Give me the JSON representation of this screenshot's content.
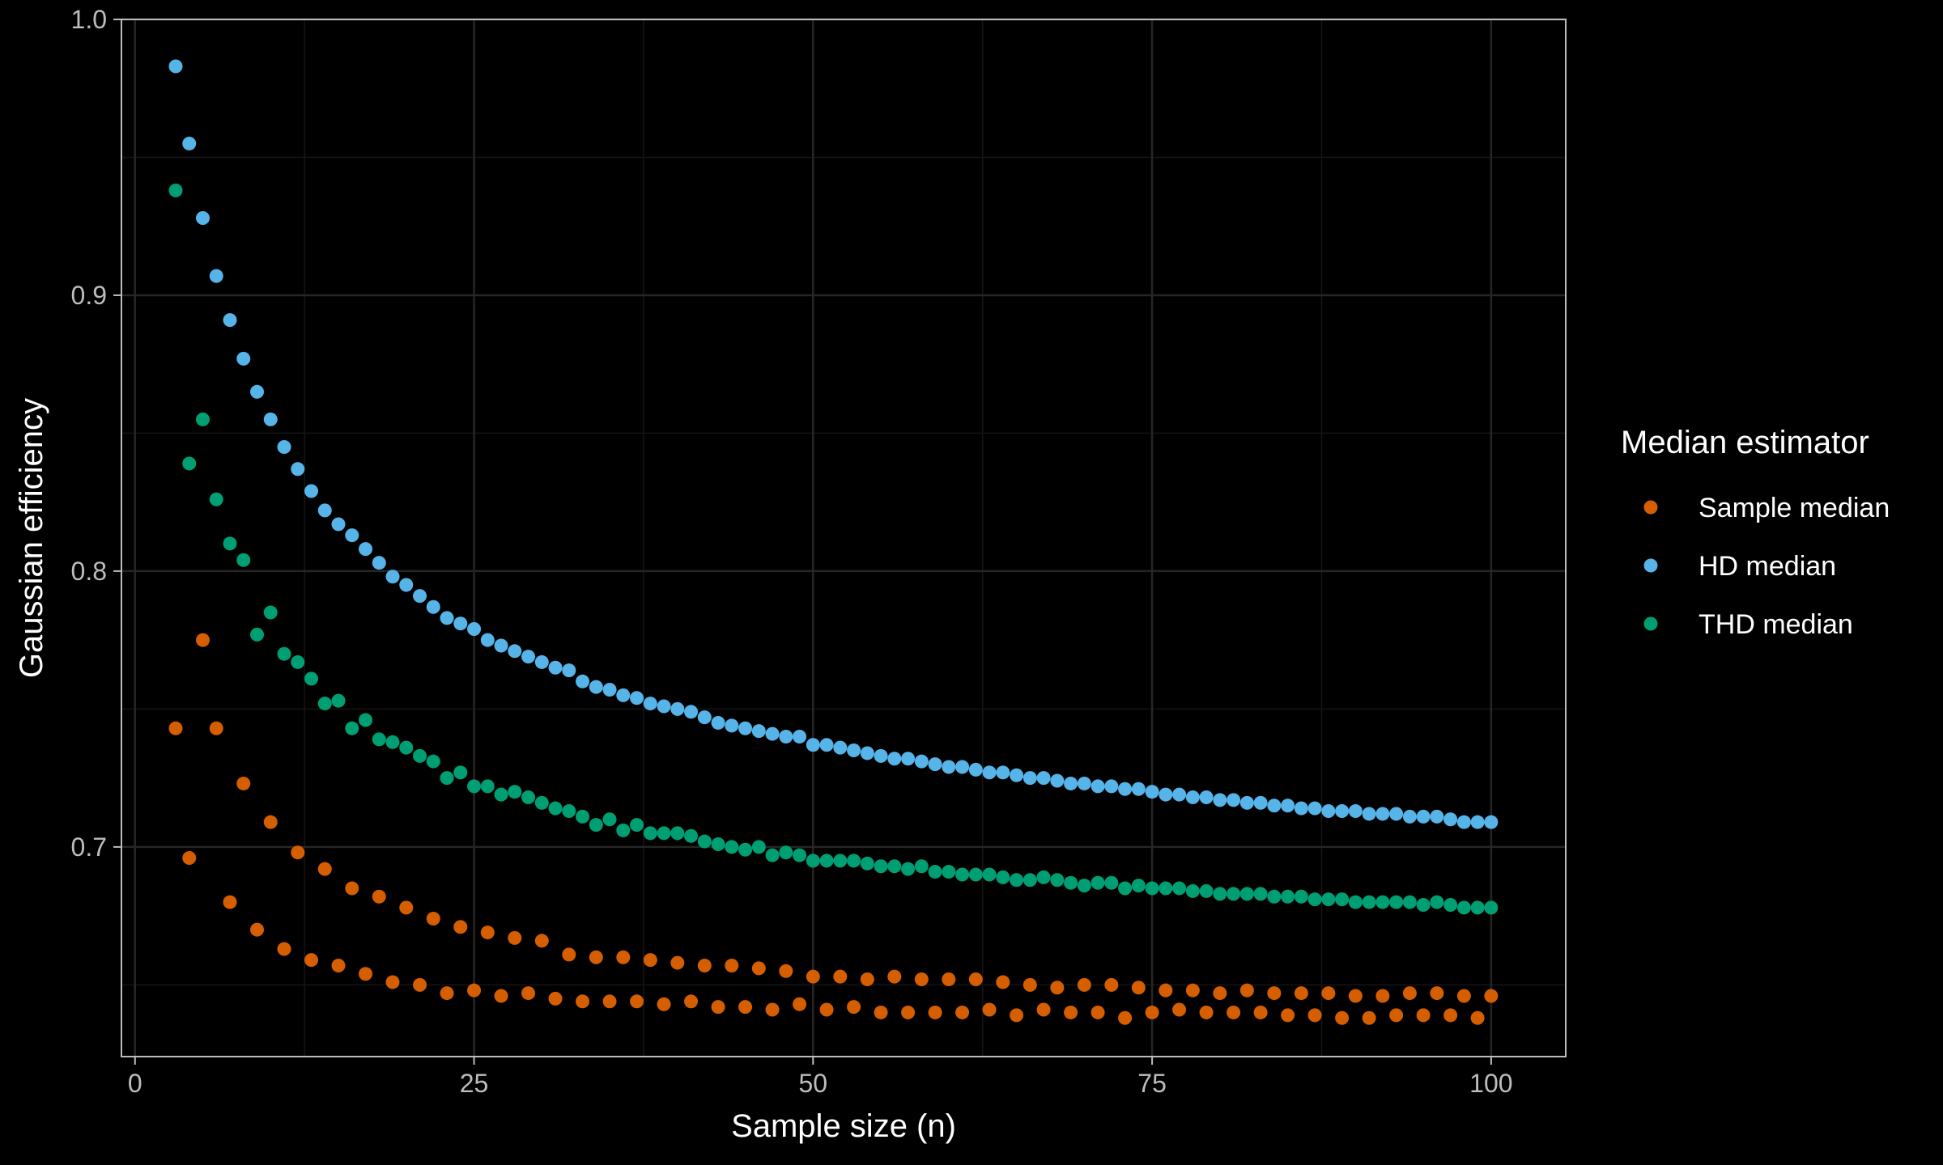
{
  "chart_data": {
    "type": "scatter",
    "xlabel": "Sample size (n)",
    "ylabel": "Gaussian efficiency",
    "xlim": [
      -1,
      105.5
    ],
    "ylim": [
      0.624,
      1.0
    ],
    "x_ticks": [
      0,
      25,
      50,
      75,
      100
    ],
    "y_ticks": [
      0.7,
      0.8,
      0.9,
      1.0
    ],
    "x_tick_labels": [
      "0",
      "25",
      "50",
      "75",
      "100"
    ],
    "y_tick_labels": [
      "0.7",
      "0.8",
      "0.9",
      "1.0"
    ],
    "grid": true,
    "legend": {
      "title": "Median estimator",
      "position": "right"
    },
    "series": [
      {
        "name": "Sample median",
        "color": "#D55E00",
        "points": [
          [
            3,
            0.743
          ],
          [
            4,
            0.696
          ],
          [
            5,
            0.775
          ],
          [
            6,
            0.743
          ],
          [
            7,
            0.68
          ],
          [
            8,
            0.723
          ],
          [
            9,
            0.67
          ],
          [
            10,
            0.709
          ],
          [
            11,
            0.663
          ],
          [
            12,
            0.698
          ],
          [
            13,
            0.659
          ],
          [
            14,
            0.692
          ],
          [
            15,
            0.657
          ],
          [
            16,
            0.685
          ],
          [
            17,
            0.654
          ],
          [
            18,
            0.682
          ],
          [
            19,
            0.651
          ],
          [
            20,
            0.678
          ],
          [
            21,
            0.65
          ],
          [
            22,
            0.674
          ],
          [
            23,
            0.647
          ],
          [
            24,
            0.671
          ],
          [
            25,
            0.648
          ],
          [
            26,
            0.669
          ],
          [
            27,
            0.646
          ],
          [
            28,
            0.667
          ],
          [
            29,
            0.647
          ],
          [
            30,
            0.666
          ],
          [
            31,
            0.645
          ],
          [
            32,
            0.661
          ],
          [
            33,
            0.644
          ],
          [
            34,
            0.66
          ],
          [
            35,
            0.644
          ],
          [
            36,
            0.66
          ],
          [
            37,
            0.644
          ],
          [
            38,
            0.659
          ],
          [
            39,
            0.643
          ],
          [
            40,
            0.658
          ],
          [
            41,
            0.644
          ],
          [
            42,
            0.657
          ],
          [
            43,
            0.642
          ],
          [
            44,
            0.657
          ],
          [
            45,
            0.642
          ],
          [
            46,
            0.656
          ],
          [
            47,
            0.641
          ],
          [
            48,
            0.655
          ],
          [
            49,
            0.643
          ],
          [
            50,
            0.653
          ],
          [
            51,
            0.641
          ],
          [
            52,
            0.653
          ],
          [
            53,
            0.642
          ],
          [
            54,
            0.652
          ],
          [
            55,
            0.64
          ],
          [
            56,
            0.653
          ],
          [
            57,
            0.64
          ],
          [
            58,
            0.652
          ],
          [
            59,
            0.64
          ],
          [
            60,
            0.652
          ],
          [
            61,
            0.64
          ],
          [
            62,
            0.652
          ],
          [
            63,
            0.641
          ],
          [
            64,
            0.651
          ],
          [
            65,
            0.639
          ],
          [
            66,
            0.65
          ],
          [
            67,
            0.641
          ],
          [
            68,
            0.649
          ],
          [
            69,
            0.64
          ],
          [
            70,
            0.65
          ],
          [
            71,
            0.64
          ],
          [
            72,
            0.65
          ],
          [
            73,
            0.638
          ],
          [
            74,
            0.649
          ],
          [
            75,
            0.64
          ],
          [
            76,
            0.648
          ],
          [
            77,
            0.641
          ],
          [
            78,
            0.648
          ],
          [
            79,
            0.64
          ],
          [
            80,
            0.647
          ],
          [
            81,
            0.64
          ],
          [
            82,
            0.648
          ],
          [
            83,
            0.64
          ],
          [
            84,
            0.647
          ],
          [
            85,
            0.639
          ],
          [
            86,
            0.647
          ],
          [
            87,
            0.639
          ],
          [
            88,
            0.647
          ],
          [
            89,
            0.638
          ],
          [
            90,
            0.646
          ],
          [
            91,
            0.638
          ],
          [
            92,
            0.646
          ],
          [
            93,
            0.639
          ],
          [
            94,
            0.647
          ],
          [
            95,
            0.639
          ],
          [
            96,
            0.647
          ],
          [
            97,
            0.639
          ],
          [
            98,
            0.646
          ],
          [
            99,
            0.638
          ],
          [
            100,
            0.646
          ]
        ]
      },
      {
        "name": "HD median",
        "color": "#56B4E9",
        "points": [
          [
            3,
            0.983
          ],
          [
            4,
            0.955
          ],
          [
            5,
            0.928
          ],
          [
            6,
            0.907
          ],
          [
            7,
            0.891
          ],
          [
            8,
            0.877
          ],
          [
            9,
            0.865
          ],
          [
            10,
            0.855
          ],
          [
            11,
            0.845
          ],
          [
            12,
            0.837
          ],
          [
            13,
            0.829
          ],
          [
            14,
            0.822
          ],
          [
            15,
            0.817
          ],
          [
            16,
            0.813
          ],
          [
            17,
            0.808
          ],
          [
            18,
            0.803
          ],
          [
            19,
            0.798
          ],
          [
            20,
            0.795
          ],
          [
            21,
            0.791
          ],
          [
            22,
            0.787
          ],
          [
            23,
            0.783
          ],
          [
            24,
            0.781
          ],
          [
            25,
            0.779
          ],
          [
            26,
            0.775
          ],
          [
            27,
            0.773
          ],
          [
            28,
            0.771
          ],
          [
            29,
            0.769
          ],
          [
            30,
            0.767
          ],
          [
            31,
            0.765
          ],
          [
            32,
            0.764
          ],
          [
            33,
            0.76
          ],
          [
            34,
            0.758
          ],
          [
            35,
            0.757
          ],
          [
            36,
            0.755
          ],
          [
            37,
            0.754
          ],
          [
            38,
            0.752
          ],
          [
            39,
            0.751
          ],
          [
            40,
            0.75
          ],
          [
            41,
            0.749
          ],
          [
            42,
            0.747
          ],
          [
            43,
            0.745
          ],
          [
            44,
            0.744
          ],
          [
            45,
            0.743
          ],
          [
            46,
            0.742
          ],
          [
            47,
            0.741
          ],
          [
            48,
            0.74
          ],
          [
            49,
            0.74
          ],
          [
            50,
            0.737
          ],
          [
            51,
            0.737
          ],
          [
            52,
            0.736
          ],
          [
            53,
            0.735
          ],
          [
            54,
            0.734
          ],
          [
            55,
            0.733
          ],
          [
            56,
            0.732
          ],
          [
            57,
            0.732
          ],
          [
            58,
            0.731
          ],
          [
            59,
            0.73
          ],
          [
            60,
            0.729
          ],
          [
            61,
            0.729
          ],
          [
            62,
            0.728
          ],
          [
            63,
            0.727
          ],
          [
            64,
            0.727
          ],
          [
            65,
            0.726
          ],
          [
            66,
            0.725
          ],
          [
            67,
            0.725
          ],
          [
            68,
            0.724
          ],
          [
            69,
            0.723
          ],
          [
            70,
            0.723
          ],
          [
            71,
            0.722
          ],
          [
            72,
            0.722
          ],
          [
            73,
            0.721
          ],
          [
            74,
            0.721
          ],
          [
            75,
            0.72
          ],
          [
            76,
            0.719
          ],
          [
            77,
            0.719
          ],
          [
            78,
            0.718
          ],
          [
            79,
            0.718
          ],
          [
            80,
            0.717
          ],
          [
            81,
            0.717
          ],
          [
            82,
            0.716
          ],
          [
            83,
            0.716
          ],
          [
            84,
            0.715
          ],
          [
            85,
            0.715
          ],
          [
            86,
            0.714
          ],
          [
            87,
            0.714
          ],
          [
            88,
            0.713
          ],
          [
            89,
            0.713
          ],
          [
            90,
            0.713
          ],
          [
            91,
            0.712
          ],
          [
            92,
            0.712
          ],
          [
            93,
            0.712
          ],
          [
            94,
            0.711
          ],
          [
            95,
            0.711
          ],
          [
            96,
            0.711
          ],
          [
            97,
            0.71
          ],
          [
            98,
            0.709
          ],
          [
            99,
            0.709
          ],
          [
            100,
            0.709
          ]
        ]
      },
      {
        "name": "THD median",
        "color": "#009E73",
        "points": [
          [
            3,
            0.938
          ],
          [
            4,
            0.839
          ],
          [
            5,
            0.855
          ],
          [
            6,
            0.826
          ],
          [
            7,
            0.81
          ],
          [
            8,
            0.804
          ],
          [
            9,
            0.777
          ],
          [
            10,
            0.785
          ],
          [
            11,
            0.77
          ],
          [
            12,
            0.767
          ],
          [
            13,
            0.761
          ],
          [
            14,
            0.752
          ],
          [
            15,
            0.753
          ],
          [
            16,
            0.743
          ],
          [
            17,
            0.746
          ],
          [
            18,
            0.739
          ],
          [
            19,
            0.738
          ],
          [
            20,
            0.736
          ],
          [
            21,
            0.733
          ],
          [
            22,
            0.731
          ],
          [
            23,
            0.725
          ],
          [
            24,
            0.727
          ],
          [
            25,
            0.722
          ],
          [
            26,
            0.722
          ],
          [
            27,
            0.719
          ],
          [
            28,
            0.72
          ],
          [
            29,
            0.718
          ],
          [
            30,
            0.716
          ],
          [
            31,
            0.714
          ],
          [
            32,
            0.713
          ],
          [
            33,
            0.711
          ],
          [
            34,
            0.708
          ],
          [
            35,
            0.71
          ],
          [
            36,
            0.706
          ],
          [
            37,
            0.708
          ],
          [
            38,
            0.705
          ],
          [
            39,
            0.705
          ],
          [
            40,
            0.705
          ],
          [
            41,
            0.704
          ],
          [
            42,
            0.702
          ],
          [
            43,
            0.701
          ],
          [
            44,
            0.7
          ],
          [
            45,
            0.699
          ],
          [
            46,
            0.7
          ],
          [
            47,
            0.697
          ],
          [
            48,
            0.698
          ],
          [
            49,
            0.697
          ],
          [
            50,
            0.695
          ],
          [
            51,
            0.695
          ],
          [
            52,
            0.695
          ],
          [
            53,
            0.695
          ],
          [
            54,
            0.694
          ],
          [
            55,
            0.693
          ],
          [
            56,
            0.693
          ],
          [
            57,
            0.692
          ],
          [
            58,
            0.693
          ],
          [
            59,
            0.691
          ],
          [
            60,
            0.691
          ],
          [
            61,
            0.69
          ],
          [
            62,
            0.69
          ],
          [
            63,
            0.69
          ],
          [
            64,
            0.689
          ],
          [
            65,
            0.688
          ],
          [
            66,
            0.688
          ],
          [
            67,
            0.689
          ],
          [
            68,
            0.688
          ],
          [
            69,
            0.687
          ],
          [
            70,
            0.686
          ],
          [
            71,
            0.687
          ],
          [
            72,
            0.687
          ],
          [
            73,
            0.685
          ],
          [
            74,
            0.686
          ],
          [
            75,
            0.685
          ],
          [
            76,
            0.685
          ],
          [
            77,
            0.685
          ],
          [
            78,
            0.684
          ],
          [
            79,
            0.684
          ],
          [
            80,
            0.683
          ],
          [
            81,
            0.683
          ],
          [
            82,
            0.683
          ],
          [
            83,
            0.683
          ],
          [
            84,
            0.682
          ],
          [
            85,
            0.682
          ],
          [
            86,
            0.682
          ],
          [
            87,
            0.681
          ],
          [
            88,
            0.681
          ],
          [
            89,
            0.681
          ],
          [
            90,
            0.68
          ],
          [
            91,
            0.68
          ],
          [
            92,
            0.68
          ],
          [
            93,
            0.68
          ],
          [
            94,
            0.68
          ],
          [
            95,
            0.679
          ],
          [
            96,
            0.68
          ],
          [
            97,
            0.679
          ],
          [
            98,
            0.678
          ],
          [
            99,
            0.678
          ],
          [
            100,
            0.678
          ]
        ]
      }
    ]
  }
}
